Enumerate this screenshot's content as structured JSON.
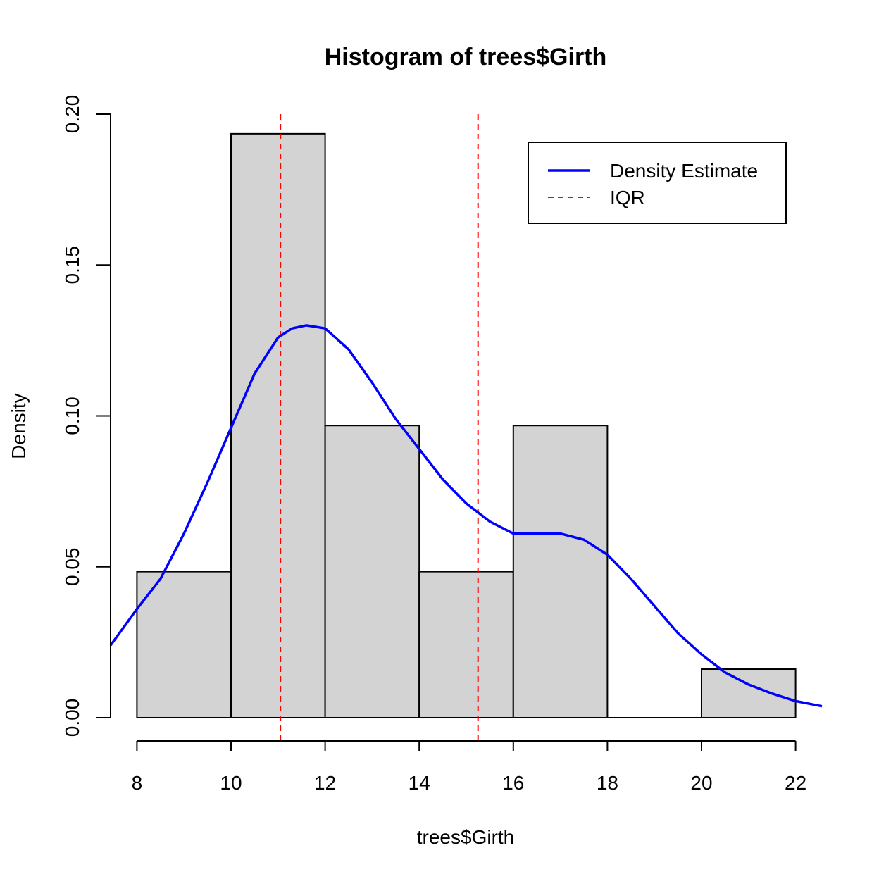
{
  "chart_data": {
    "type": "bar",
    "title": "Histogram of trees$Girth",
    "xlabel": "trees$Girth",
    "ylabel": "Density",
    "xlim": [
      7.44,
      22.56
    ],
    "ylim": [
      0,
      0.2
    ],
    "x_ticks": [
      8,
      10,
      12,
      14,
      16,
      18,
      20,
      22
    ],
    "y_ticks": [
      0,
      0.05,
      0.1,
      0.15,
      0.2
    ],
    "x_tick_labels": [
      "8",
      "10",
      "12",
      "14",
      "16",
      "18",
      "20",
      "22"
    ],
    "y_tick_labels": [
      "0.00",
      "0.05",
      "0.10",
      "0.15",
      "0.20"
    ],
    "bins": [
      {
        "start": 8,
        "end": 10,
        "density": 0.0484
      },
      {
        "start": 10,
        "end": 12,
        "density": 0.1935
      },
      {
        "start": 12,
        "end": 14,
        "density": 0.0968
      },
      {
        "start": 14,
        "end": 16,
        "density": 0.0484
      },
      {
        "start": 16,
        "end": 18,
        "density": 0.0968
      },
      {
        "start": 18,
        "end": 20,
        "density": 0.0
      },
      {
        "start": 20,
        "end": 22,
        "density": 0.0161
      }
    ],
    "bar_color": "#d3d3d3",
    "density_series": {
      "name": "Density Estimate",
      "color": "#0000ff",
      "x": [
        7.44,
        8.0,
        8.5,
        9.0,
        9.5,
        10.0,
        10.5,
        11.0,
        11.3,
        11.6,
        12.0,
        12.5,
        13.0,
        13.5,
        14.0,
        14.5,
        15.0,
        15.5,
        16.0,
        16.5,
        17.0,
        17.5,
        18.0,
        18.5,
        19.0,
        19.5,
        20.0,
        20.5,
        21.0,
        21.5,
        22.0,
        22.56
      ],
      "y": [
        0.024,
        0.036,
        0.046,
        0.061,
        0.078,
        0.096,
        0.114,
        0.126,
        0.129,
        0.13,
        0.129,
        0.122,
        0.111,
        0.099,
        0.089,
        0.079,
        0.071,
        0.065,
        0.061,
        0.061,
        0.061,
        0.059,
        0.054,
        0.046,
        0.037,
        0.028,
        0.021,
        0.015,
        0.011,
        0.008,
        0.0055,
        0.0038
      ]
    },
    "iqr_series": {
      "name": "IQR",
      "color": "#ff0000",
      "values": [
        11.05,
        15.25
      ]
    },
    "legend_placement": "top-right",
    "grid": false
  }
}
